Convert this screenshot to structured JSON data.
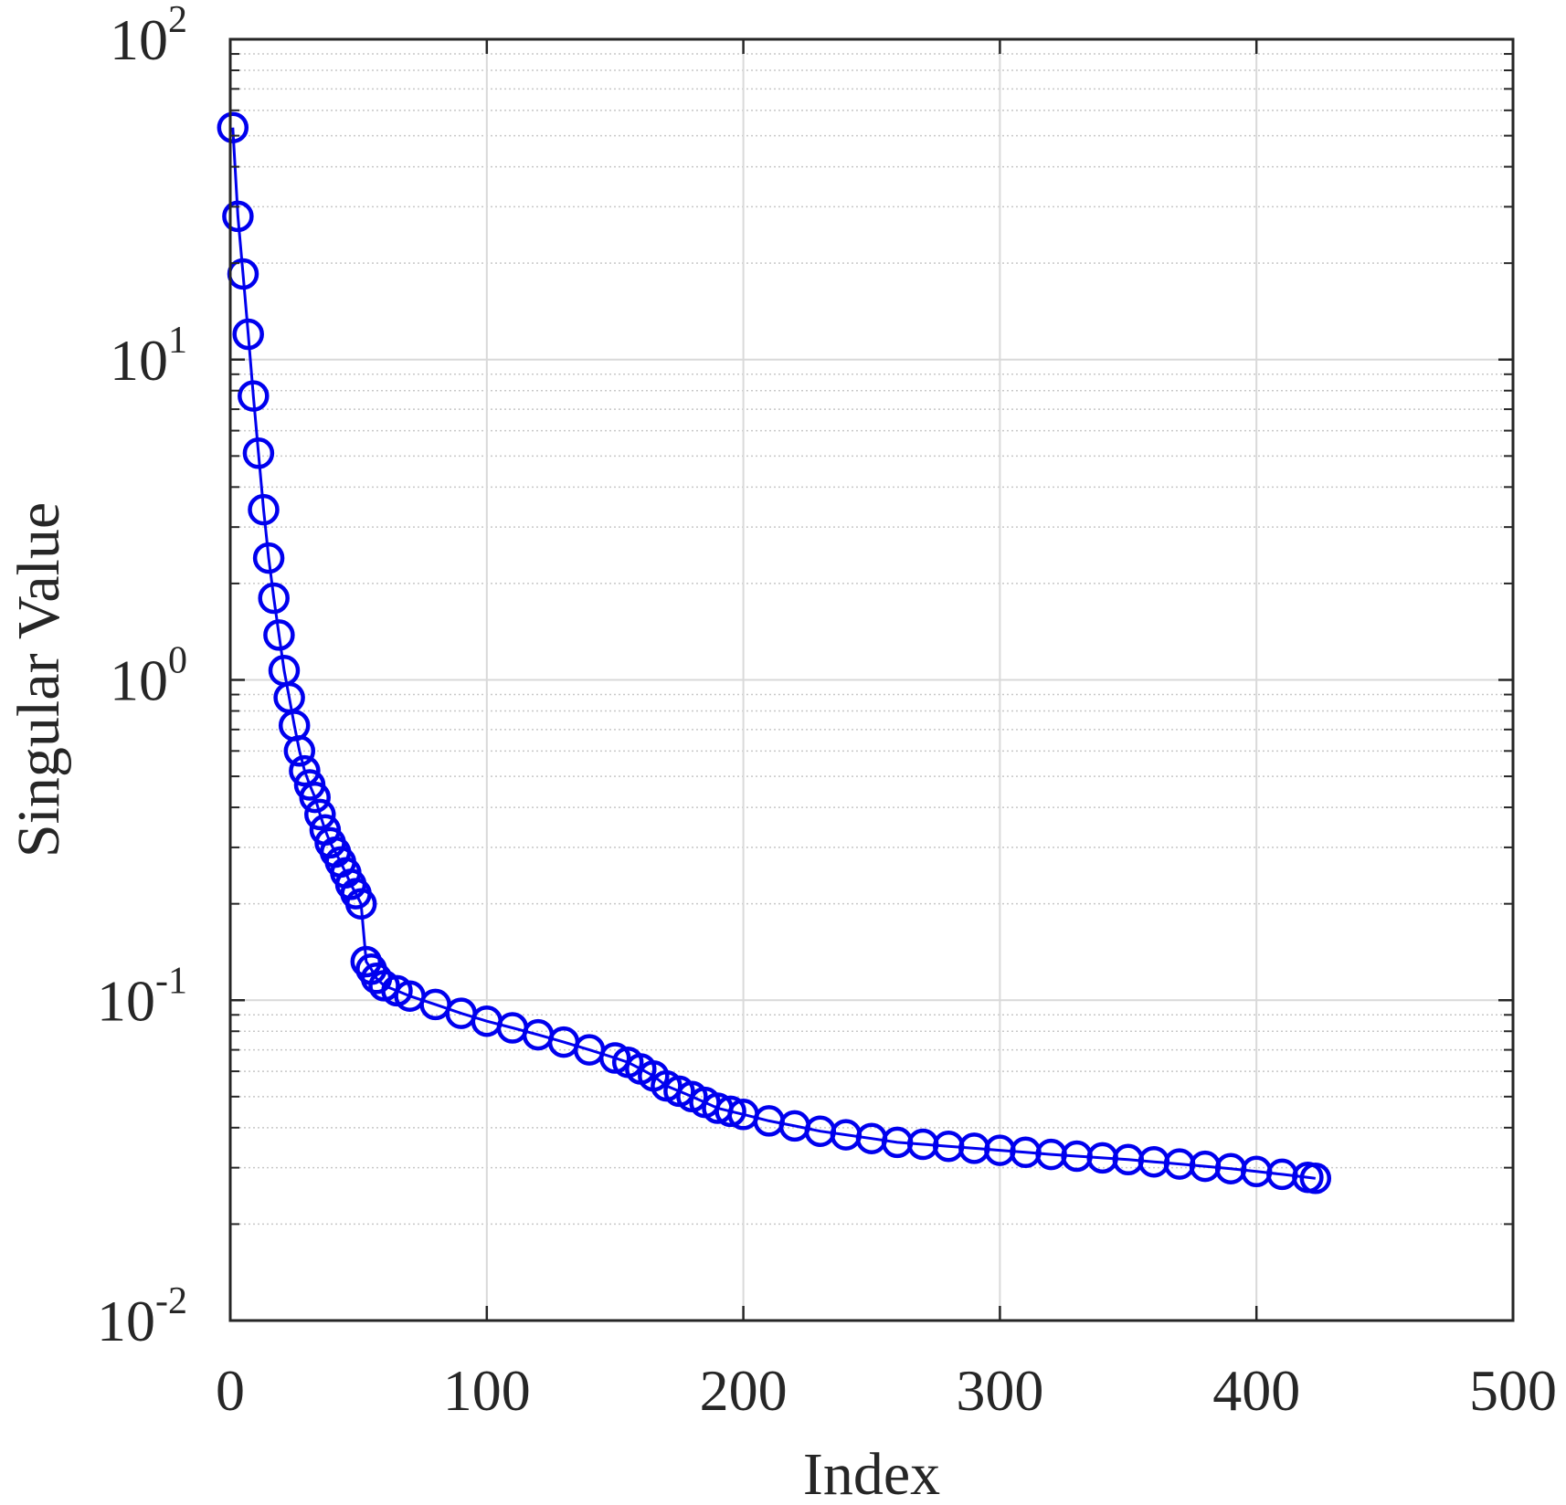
{
  "chart_data": {
    "type": "scatter",
    "xlabel": "Index",
    "ylabel": "Singular Value",
    "xlim": [
      0,
      500
    ],
    "ylim": [
      0.01,
      100
    ],
    "yscale": "log",
    "grid": true,
    "minor_grid": true,
    "x_ticks": [
      "0",
      "100",
      "200",
      "300",
      "400",
      "500"
    ],
    "y_ticks": [
      {
        "base": "10",
        "exp": "-2"
      },
      {
        "base": "10",
        "exp": "-1"
      },
      {
        "base": "10",
        "exp": "0"
      },
      {
        "base": "10",
        "exp": "1"
      },
      {
        "base": "10",
        "exp": "2"
      }
    ],
    "series": [
      {
        "marker": "circle",
        "line": "solid",
        "color": "#0000ee",
        "x": [
          1,
          3,
          5,
          7,
          9,
          11,
          13,
          15,
          17,
          19,
          21,
          23,
          25,
          27,
          29,
          31,
          33,
          35,
          37,
          39,
          41,
          43,
          45,
          47,
          49,
          51,
          53,
          55,
          57,
          60,
          65,
          70,
          80,
          90,
          100,
          110,
          120,
          130,
          140,
          150,
          155,
          160,
          165,
          170,
          175,
          180,
          185,
          190,
          195,
          200,
          210,
          220,
          230,
          240,
          250,
          260,
          270,
          280,
          290,
          300,
          310,
          320,
          330,
          340,
          350,
          360,
          370,
          380,
          390,
          400,
          410,
          420,
          423
        ],
        "y": [
          53,
          28,
          18.5,
          12,
          7.7,
          5.1,
          3.4,
          2.4,
          1.8,
          1.38,
          1.07,
          0.88,
          0.72,
          0.6,
          0.52,
          0.47,
          0.43,
          0.38,
          0.34,
          0.31,
          0.29,
          0.27,
          0.25,
          0.23,
          0.215,
          0.2,
          0.132,
          0.125,
          0.117,
          0.111,
          0.107,
          0.103,
          0.097,
          0.091,
          0.086,
          0.082,
          0.078,
          0.074,
          0.07,
          0.066,
          0.064,
          0.061,
          0.058,
          0.054,
          0.052,
          0.05,
          0.048,
          0.046,
          0.045,
          0.044,
          0.042,
          0.0405,
          0.039,
          0.038,
          0.037,
          0.036,
          0.0355,
          0.035,
          0.0345,
          0.034,
          0.0335,
          0.033,
          0.0326,
          0.0322,
          0.0318,
          0.0313,
          0.0308,
          0.0303,
          0.0298,
          0.0292,
          0.0286,
          0.028,
          0.0278
        ]
      }
    ]
  }
}
